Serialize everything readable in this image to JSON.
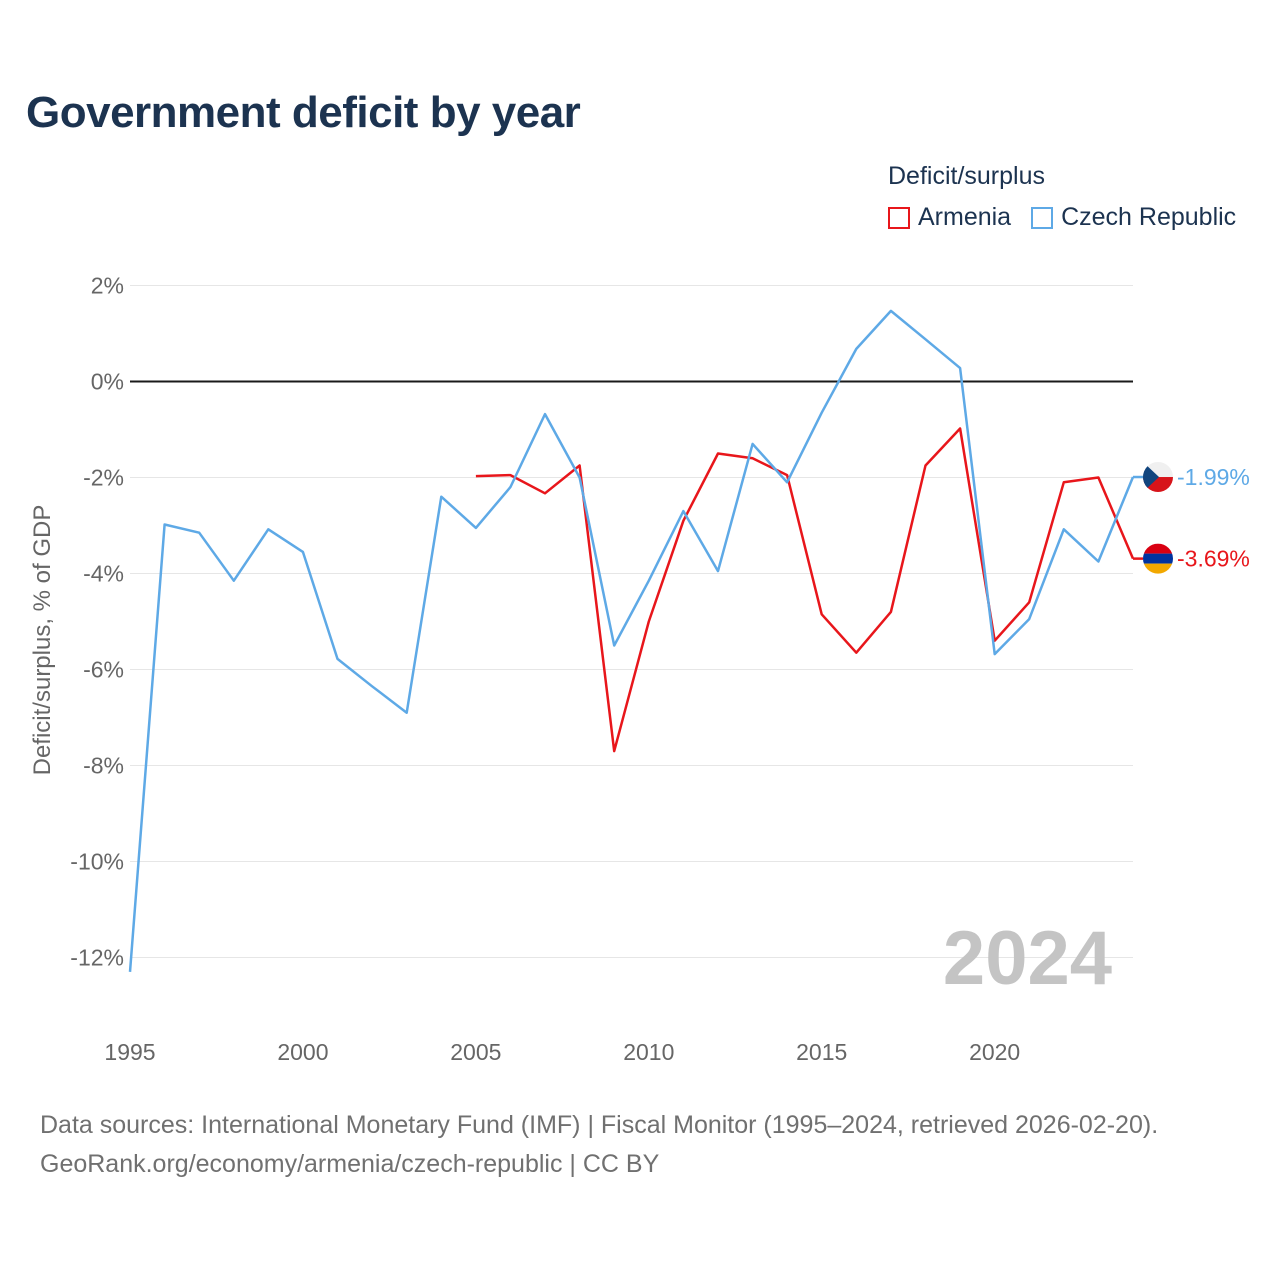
{
  "title": "Government deficit by year",
  "legend": {
    "title": "Deficit/surplus",
    "items": [
      {
        "label": "Armenia",
        "color": "#e8161b"
      },
      {
        "label": "Czech Republic",
        "color": "#5ea9e6"
      }
    ]
  },
  "footer": {
    "sources": "Data sources: International Monetary Fund (IMF) | Fiscal Monitor (1995–2024, retrieved 2026-02-20).",
    "credit": "GeoRank.org/economy/armenia/czech-republic | CC BY"
  },
  "chart_data": {
    "type": "line",
    "title": "Government deficit by year",
    "ylabel": "Deficit/surplus, % of GDP",
    "xlabel": "",
    "xlim": [
      1995,
      2024
    ],
    "ylim": [
      -12.5,
      2
    ],
    "x_ticks": [
      1995,
      2000,
      2005,
      2010,
      2015,
      2020
    ],
    "x_tick_labels": [
      "1995",
      "2000",
      "2005",
      "2010",
      "2015",
      "2020"
    ],
    "y_ticks": [
      2,
      0,
      -2,
      -4,
      -6,
      -8,
      -10,
      -12
    ],
    "y_tick_labels": [
      "2%",
      "0%",
      "-2%",
      "-4%",
      "-6%",
      "-8%",
      "-10%",
      "-12%"
    ],
    "zero_line": true,
    "grid": true,
    "watermark_year": "2024",
    "series": [
      {
        "name": "Armenia",
        "color": "#e8161b",
        "flag": "armenia-flag",
        "end_label": "-3.69%",
        "x": [
          2005,
          2006,
          2007,
          2008,
          2009,
          2010,
          2011,
          2012,
          2013,
          2014,
          2015,
          2016,
          2017,
          2018,
          2019,
          2020,
          2021,
          2022,
          2023,
          2024
        ],
        "values": [
          -1.97,
          -1.95,
          -2.33,
          -1.75,
          -7.7,
          -5.0,
          -2.9,
          -1.5,
          -1.6,
          -1.95,
          -4.85,
          -5.65,
          -4.8,
          -1.75,
          -0.98,
          -5.4,
          -4.6,
          -2.1,
          -2.0,
          -3.69
        ]
      },
      {
        "name": "Czech Republic",
        "color": "#5ea9e6",
        "flag": "czech-republic-flag",
        "end_label": "-1.99%",
        "x": [
          1995,
          1996,
          1997,
          1998,
          1999,
          2000,
          2001,
          2002,
          2003,
          2004,
          2005,
          2006,
          2007,
          2008,
          2009,
          2010,
          2011,
          2012,
          2013,
          2014,
          2015,
          2016,
          2017,
          2018,
          2019,
          2020,
          2021,
          2022,
          2023,
          2024
        ],
        "values": [
          -12.3,
          -2.98,
          -3.15,
          -4.15,
          -3.08,
          -3.55,
          -5.78,
          -6.35,
          -6.9,
          -2.4,
          -3.05,
          -2.2,
          -0.68,
          -2.0,
          -5.5,
          -4.15,
          -2.7,
          -3.95,
          -1.3,
          -2.1,
          -0.65,
          0.68,
          1.47,
          0.88,
          0.28,
          -5.68,
          -4.95,
          -3.08,
          -3.75,
          -1.99
        ]
      }
    ]
  }
}
